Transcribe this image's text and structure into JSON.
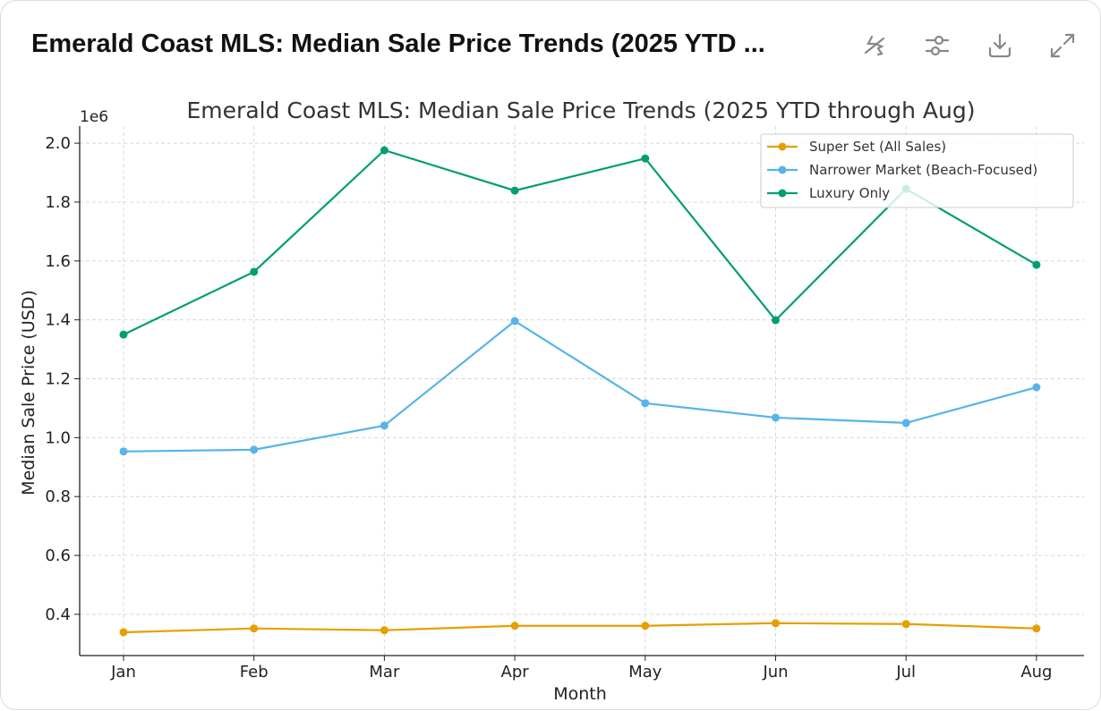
{
  "header": {
    "title": "Emerald Coast MLS: Median Sale Price Trends (2025 YTD ...",
    "icons": [
      "hide-interactive-icon",
      "settings-sliders-icon",
      "download-icon",
      "expand-icon"
    ]
  },
  "chart_data": {
    "type": "line",
    "title": "Emerald Coast MLS: Median Sale Price Trends (2025 YTD through Aug)",
    "xlabel": "Month",
    "ylabel": "Median Sale Price (USD)",
    "y_offset_label": "1e6",
    "categories": [
      "Jan",
      "Feb",
      "Mar",
      "Apr",
      "May",
      "Jun",
      "Jul",
      "Aug"
    ],
    "yticks": [
      0.4,
      0.6,
      0.8,
      1.0,
      1.2,
      1.4,
      1.6,
      1.8,
      2.0
    ],
    "ytick_labels": [
      "0.4",
      "0.6",
      "0.8",
      "1.0",
      "1.2",
      "1.4",
      "1.6",
      "1.8",
      "2.0"
    ],
    "ylim": [
      0.26,
      2.058
    ],
    "grid": true,
    "legend_position": "top-right",
    "series": [
      {
        "name": "Super Set (All Sales)",
        "color": "#E69F00",
        "values": [
          0.339,
          0.352,
          0.346,
          0.361,
          0.361,
          0.37,
          0.367,
          0.352
        ]
      },
      {
        "name": "Narrower Market (Beach-Focused)",
        "color": "#56B4E9",
        "values": [
          0.953,
          0.959,
          1.041,
          1.396,
          1.117,
          1.068,
          1.05,
          1.171
        ]
      },
      {
        "name": "Luxury Only",
        "color": "#009E73",
        "values": [
          1.35,
          1.563,
          1.976,
          1.839,
          1.948,
          1.399,
          1.845,
          1.587
        ]
      }
    ]
  }
}
